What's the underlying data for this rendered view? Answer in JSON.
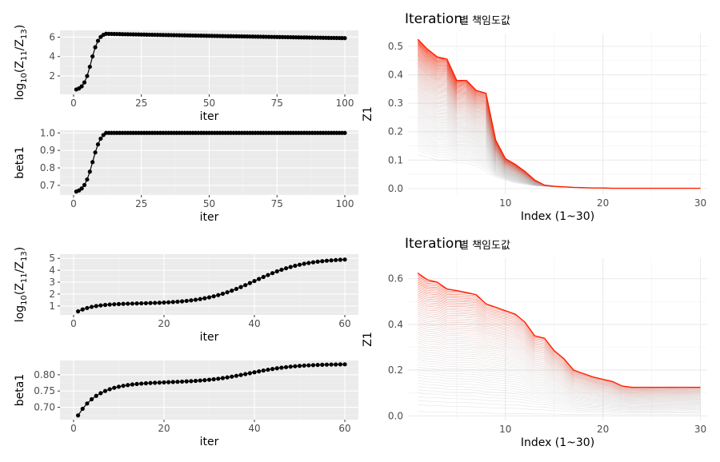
{
  "colors": {
    "panel_bg": "#ebebeb",
    "grid_major": "#ffffff",
    "grid_minor": "#f5f5f5",
    "line_hi": "#ff2000",
    "line_lo": "#b4b4b4",
    "point": "#000000"
  },
  "chart_data": [
    {
      "type": "scatter",
      "ylabel_parts": [
        "log",
        "10",
        "(Z",
        "11",
        "/Z",
        "13",
        ")"
      ],
      "xlabel": "iter",
      "xlim": [
        -5,
        105
      ],
      "ylim": [
        0.1,
        6.7
      ],
      "xticks": [
        0,
        25,
        50,
        75,
        100
      ],
      "yticks": [
        2,
        4,
        6
      ],
      "xtick_labels": [
        "0",
        "25",
        "50",
        "75",
        "100"
      ],
      "ytick_labels": [
        "2",
        "4",
        "6"
      ],
      "curve": {
        "n": 100,
        "start": 0.6,
        "end": 5.9,
        "peak_iter": 12,
        "peak_value": 6.35
      },
      "grid": true
    },
    {
      "type": "scatter",
      "ylabel": "beta1",
      "xlabel": "iter",
      "xlim": [
        -5,
        105
      ],
      "ylim": [
        0.645,
        1.015
      ],
      "xticks": [
        0,
        25,
        50,
        75,
        100
      ],
      "yticks": [
        0.7,
        0.8,
        0.9,
        1.0
      ],
      "xtick_labels": [
        "0",
        "25",
        "50",
        "75",
        "100"
      ],
      "ytick_labels": [
        "0.7",
        "0.8",
        "0.9",
        "1.0"
      ],
      "curve": {
        "n": 100,
        "start": 0.665,
        "end": 1.0,
        "saturate_iter": 12
      },
      "grid": true
    },
    {
      "type": "scatter",
      "ylabel_parts": [
        "log",
        "10",
        "(Z",
        "11",
        "/Z",
        "13",
        ")"
      ],
      "xlabel": "iter",
      "xlim": [
        -3,
        63
      ],
      "ylim": [
        0.25,
        5.35
      ],
      "xticks": [
        0,
        20,
        40,
        60
      ],
      "yticks": [
        1,
        2,
        3,
        4,
        5
      ],
      "xtick_labels": [
        "0",
        "20",
        "40",
        "60"
      ],
      "ytick_labels": [
        "1",
        "2",
        "3",
        "4",
        "5"
      ],
      "curve": {
        "n": 60,
        "start": 0.55,
        "end": 5.0,
        "plateau": 1.2
      },
      "grid": true
    },
    {
      "type": "scatter",
      "ylabel": "beta1",
      "xlabel": "iter",
      "xlim": [
        -3,
        63
      ],
      "ylim": [
        0.662,
        0.844
      ],
      "xticks": [
        0,
        20,
        40,
        60
      ],
      "yticks": [
        0.7,
        0.75,
        0.8
      ],
      "xtick_labels": [
        "0",
        "20",
        "40",
        "60"
      ],
      "ytick_labels": [
        "0.70",
        "0.75",
        "0.80"
      ],
      "curve": {
        "n": 60,
        "start": 0.675,
        "end": 0.833,
        "plateau": 0.777
      },
      "grid": true
    },
    {
      "type": "line",
      "title": "Iteration",
      "title_suffix": "별 책임도값",
      "xlabel": "Index (1~30)",
      "ylabel": "Z1",
      "xlim": [
        0,
        30.7
      ],
      "ylim": [
        -0.02,
        0.545
      ],
      "xticks": [
        10,
        20,
        30
      ],
      "yticks": [
        0,
        0.1,
        0.2,
        0.3,
        0.4,
        0.5
      ],
      "xtick_labels": [
        "10",
        "20",
        "30"
      ],
      "ytick_labels": [
        "0.0",
        "0.1",
        "0.2",
        "0.3",
        "0.4",
        "0.5"
      ],
      "series_count": 100,
      "final_series": [
        0.525,
        0.49,
        0.463,
        0.455,
        0.38,
        0.38,
        0.345,
        0.335,
        0.17,
        0.105,
        0.085,
        0.06,
        0.03,
        0.012,
        0.008,
        0.006,
        0.004,
        0.003,
        0.002,
        0.002,
        0.001,
        0.001,
        0.001,
        0.001,
        0.001,
        0.001,
        0.001,
        0.001,
        0.001,
        0.001
      ],
      "initial_series": [
        0.12,
        0.11,
        0.1,
        0.1,
        0.09,
        0.09,
        0.08,
        0.06,
        0.04,
        0.03,
        0.02,
        0.015,
        0.01,
        0.008,
        0.006,
        0.005,
        0.004,
        0.003,
        0.002,
        0.002,
        0.001,
        0.001,
        0.001,
        0.001,
        0.001,
        0.001,
        0.001,
        0.001,
        0.001,
        0.001
      ],
      "grid": true
    },
    {
      "type": "line",
      "title": "Iteration",
      "title_suffix": "별 책임도값",
      "xlabel": "Index (1~30)",
      "ylabel": "Z1",
      "xlim": [
        0,
        30.7
      ],
      "ylim": [
        -0.02,
        0.69
      ],
      "xticks": [
        10,
        20,
        30
      ],
      "yticks": [
        0,
        0.2,
        0.4,
        0.6
      ],
      "xtick_labels": [
        "10",
        "20",
        "30"
      ],
      "ytick_labels": [
        "0.0",
        "0.2",
        "0.4",
        "0.6"
      ],
      "series_count": 60,
      "final_series": [
        0.625,
        0.595,
        0.585,
        0.555,
        0.548,
        0.54,
        0.53,
        0.49,
        0.475,
        0.46,
        0.445,
        0.41,
        0.35,
        0.34,
        0.285,
        0.25,
        0.2,
        0.185,
        0.17,
        0.16,
        0.15,
        0.13,
        0.125,
        0.125,
        0.125,
        0.125,
        0.125,
        0.125,
        0.125,
        0.125
      ],
      "initial_series": [
        0.02,
        0.018,
        0.017,
        0.016,
        0.015,
        0.014,
        0.013,
        0.012,
        0.011,
        0.01,
        0.01,
        0.009,
        0.009,
        0.008,
        0.008,
        0.007,
        0.007,
        0.006,
        0.006,
        0.006,
        0.005,
        0.005,
        0.005,
        0.005,
        0.005,
        0.005,
        0.005,
        0.005,
        0.005,
        0.005
      ],
      "grid": true
    }
  ]
}
